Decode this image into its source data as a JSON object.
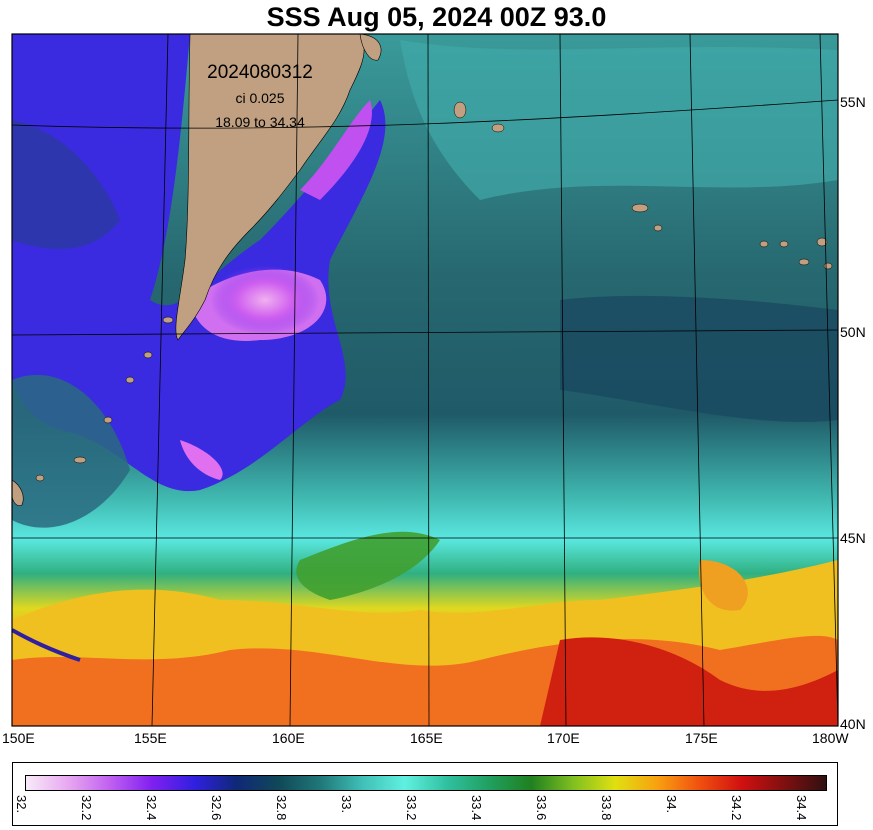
{
  "title": "SSS Aug 05, 2024 00Z 93.0",
  "info": {
    "date_code": "2024080312",
    "ci": "ci 0.025",
    "range": "18.09 to 34.34"
  },
  "axes": {
    "lon_labels": [
      "150E",
      "155E",
      "160E",
      "165E",
      "170E",
      "175E",
      "180W"
    ],
    "lat_labels": [
      "55N",
      "50N",
      "45N",
      "40N"
    ]
  },
  "colorbar": {
    "ticks": [
      "32.",
      "32.2",
      "32.4",
      "32.6",
      "32.8",
      "33.",
      "33.2",
      "33.4",
      "33.6",
      "33.8",
      "34.",
      "34.2",
      "34.4"
    ],
    "colors": [
      "#f8eaf8",
      "#e8a8f0",
      "#c060f0",
      "#8020f0",
      "#3020e0",
      "#102878",
      "#104858",
      "#207878",
      "#40c0b8",
      "#60f0e0",
      "#30c0a0",
      "#20a060",
      "#208020",
      "#80c020",
      "#e0e010",
      "#f8a010",
      "#f05010",
      "#d01010",
      "#801010",
      "#301010"
    ]
  },
  "colors": {
    "land": "#c0a080",
    "north_ocean": "#2a6a72",
    "west_fresh": "#3a2ae0",
    "gyre_pink": "#d070f0",
    "cyan_front": "#50e0d8",
    "warm_south": "#f0c020",
    "red_south": "#e03010"
  }
}
